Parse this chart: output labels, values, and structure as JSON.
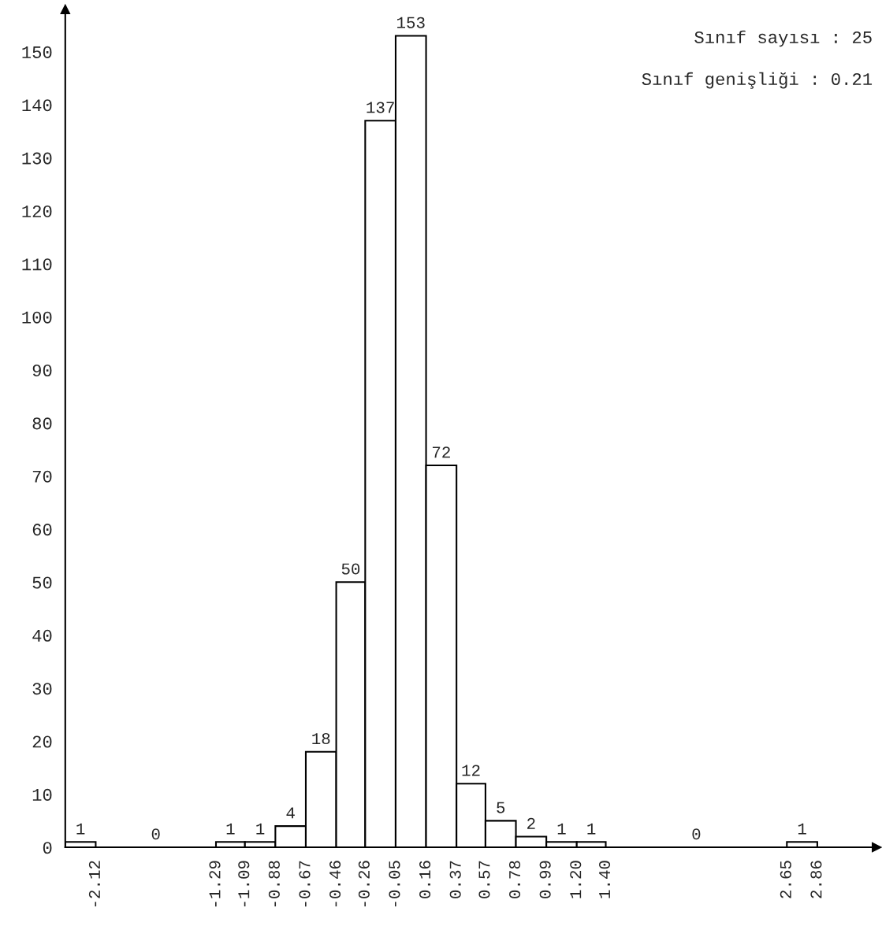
{
  "chart_data": {
    "type": "histogram",
    "bins": [
      -2.33,
      -2.12,
      -1.29,
      -1.09,
      -0.88,
      -0.67,
      -0.46,
      -0.26,
      -0.05,
      0.16,
      0.37,
      0.57,
      0.78,
      0.99,
      1.2,
      1.4,
      2.65,
      2.86
    ],
    "values": [
      1,
      0,
      1,
      1,
      4,
      18,
      50,
      137,
      153,
      72,
      12,
      5,
      2,
      1,
      1,
      0,
      1
    ],
    "color": "#ffffff",
    "data_labels": true,
    "xlim": [
      -2.33,
      3.27
    ],
    "xticks": [
      {
        "value": -2.33,
        "label": null
      },
      -2.12,
      -1.29,
      -1.09,
      -0.88,
      -0.67,
      -0.46,
      -0.26,
      -0.05,
      0.16,
      0.37,
      0.57,
      0.78,
      0.99,
      {
        "value": 1.2,
        "label": "1.20"
      },
      {
        "value": 1.4,
        "label": "1.40"
      },
      2.65,
      2.86
    ],
    "ylim": [
      0,
      158
    ],
    "yticks": [
      0,
      10,
      20,
      30,
      40,
      50,
      60,
      70,
      80,
      90,
      100,
      110,
      120,
      130,
      140,
      150
    ],
    "grid": false,
    "annotations": [
      "Sınıf sayısı : 25",
      "Sınıf genişliği : 0.21"
    ]
  }
}
